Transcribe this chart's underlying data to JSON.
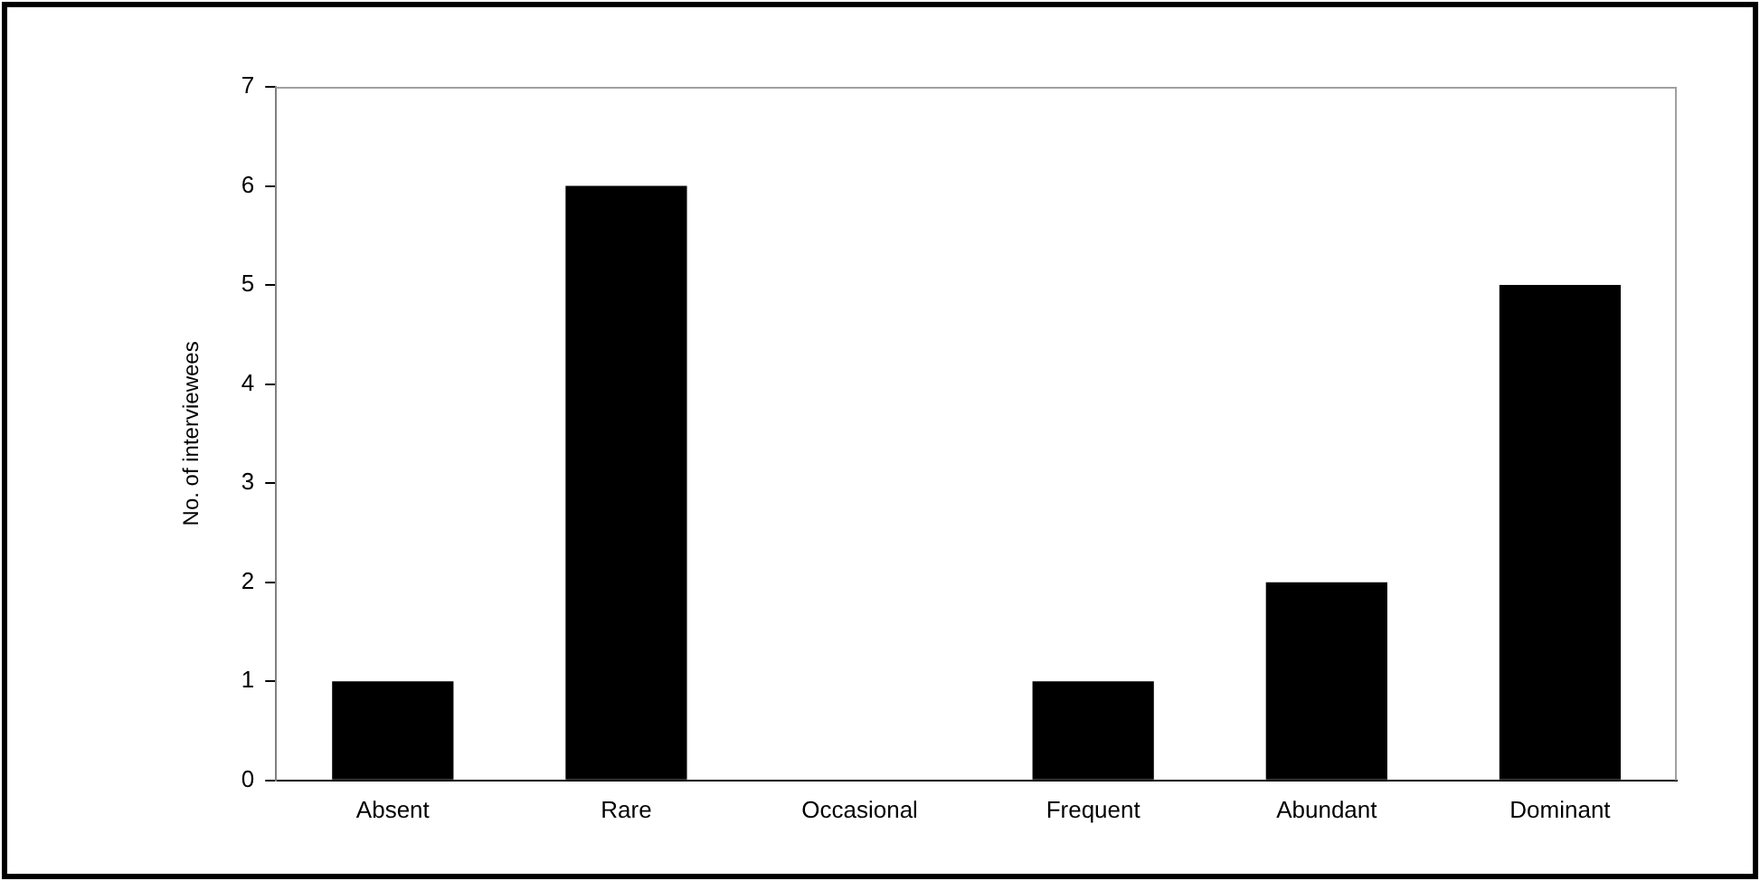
{
  "chart_data": {
    "type": "bar",
    "ylabel": "No. of interviewees",
    "categories": [
      "Absent",
      "Rare",
      "Occasional",
      "Frequent",
      "Abundant",
      "Dominant"
    ],
    "values": [
      1,
      6,
      0,
      1,
      2,
      5
    ],
    "color": "#000000",
    "ylim": [
      0,
      7
    ],
    "yticks": [
      0,
      1,
      2,
      3,
      4,
      5,
      6,
      7
    ],
    "grid": false,
    "legend": false
  }
}
